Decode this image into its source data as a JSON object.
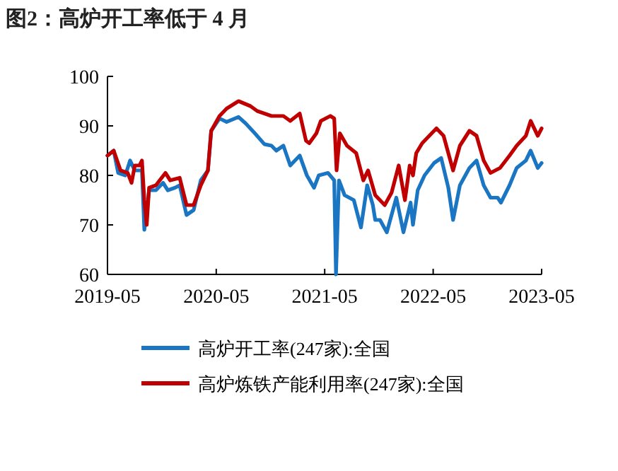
{
  "chart_data": {
    "type": "line",
    "title": "图2：高炉开工率低于 4 月",
    "xlim": [
      "2019-05",
      "2023-05"
    ],
    "xticks": [
      {
        "value": "2019-05",
        "label": "2019-05"
      },
      {
        "value": "2020-05",
        "label": "2020-05"
      },
      {
        "value": "2021-05",
        "label": "2021-05"
      },
      {
        "value": "2022-05",
        "label": "2022-05"
      },
      {
        "value": "2023-05",
        "label": "2023-05"
      }
    ],
    "ylim": [
      60,
      100
    ],
    "yticks": [
      60,
      70,
      80,
      90,
      100
    ],
    "grid": false,
    "legend": "bottom",
    "marker": "none",
    "line_style": "solid",
    "series": [
      {
        "name": "高炉开工率(247家):全国",
        "color": "#1a75c2",
        "x": [
          "2019-05-01",
          "2019-05-22",
          "2019-06-06",
          "2019-06-30",
          "2019-07-16",
          "2019-08-01",
          "2019-08-25",
          "2019-09-02",
          "2019-09-18",
          "2019-10-11",
          "2019-11-04",
          "2019-11-20",
          "2019-12-14",
          "2019-12-30",
          "2020-01-22",
          "2020-02-15",
          "2020-03-10",
          "2020-04-03",
          "2020-04-14",
          "2020-05-12",
          "2020-06-05",
          "2020-07-15",
          "2020-08-08",
          "2020-09-08",
          "2020-10-10",
          "2020-11-03",
          "2020-11-19",
          "2020-12-13",
          "2021-01-05",
          "2021-02-06",
          "2021-03-02",
          "2021-03-26",
          "2021-04-11",
          "2021-05-12",
          "2021-06-02",
          "2021-06-08",
          "2021-06-18",
          "2021-07-07",
          "2021-08-07",
          "2021-08-31",
          "2021-09-21",
          "2021-10-10",
          "2021-10-18",
          "2021-11-03",
          "2021-11-26",
          "2021-12-28",
          "2022-01-21",
          "2022-02-14",
          "2022-02-22",
          "2022-03-10",
          "2022-04-02",
          "2022-05-04",
          "2022-05-28",
          "2022-06-21",
          "2022-07-07",
          "2022-07-30",
          "2022-08-31",
          "2022-09-24",
          "2022-10-18",
          "2022-11-10",
          "2022-12-04",
          "2022-12-15",
          "2023-01-13",
          "2023-02-06",
          "2023-03-09",
          "2023-03-25",
          "2023-04-18",
          "2023-05-01"
        ],
        "values": [
          84,
          85,
          80.5,
          80,
          83,
          81,
          81,
          69,
          77,
          77,
          78.5,
          77,
          77.5,
          78,
          72,
          73,
          79,
          81,
          89,
          91.5,
          90.8,
          91.8,
          90.5,
          88.5,
          86.3,
          86,
          85,
          86,
          82,
          84,
          80,
          77.5,
          80,
          80.5,
          79,
          60,
          79,
          76,
          75,
          69.5,
          78,
          74,
          71,
          71,
          68.5,
          75.5,
          68.5,
          74.5,
          70,
          77,
          80,
          82.5,
          83.5,
          77.5,
          71,
          78,
          81.5,
          83,
          78,
          75.5,
          75.5,
          74.5,
          78,
          81.5,
          83,
          85,
          81.5,
          82.5
        ]
      },
      {
        "name": "高炉炼铁产能利用率(247家):全国",
        "color": "#c00000",
        "x": [
          "2019-05-01",
          "2019-05-22",
          "2019-06-14",
          "2019-07-08",
          "2019-07-21",
          "2019-08-01",
          "2019-08-17",
          "2019-08-25",
          "2019-09-02",
          "2019-09-10",
          "2019-09-18",
          "2019-10-11",
          "2019-11-12",
          "2019-11-28",
          "2019-12-30",
          "2020-01-22",
          "2020-02-15",
          "2020-03-10",
          "2020-04-03",
          "2020-04-14",
          "2020-05-12",
          "2020-06-05",
          "2020-07-15",
          "2020-08-24",
          "2020-09-16",
          "2020-10-10",
          "2020-11-03",
          "2020-11-27",
          "2020-12-13",
          "2021-01-05",
          "2021-02-06",
          "2021-02-27",
          "2021-03-10",
          "2021-04-03",
          "2021-04-18",
          "2021-05-20",
          "2021-06-02",
          "2021-06-10",
          "2021-06-21",
          "2021-07-15",
          "2021-08-15",
          "2021-09-08",
          "2021-09-24",
          "2021-10-18",
          "2021-11-19",
          "2021-12-12",
          "2022-01-05",
          "2022-01-26",
          "2022-02-11",
          "2022-02-22",
          "2022-03-05",
          "2022-03-25",
          "2022-04-18",
          "2022-05-12",
          "2022-06-05",
          "2022-07-07",
          "2022-07-30",
          "2022-08-31",
          "2022-09-24",
          "2022-10-18",
          "2022-11-10",
          "2022-12-12",
          "2023-01-13",
          "2023-02-06",
          "2023-03-09",
          "2023-03-25",
          "2023-04-18",
          "2023-05-01"
        ],
        "values": [
          84,
          85,
          81,
          80.5,
          78.5,
          82,
          82,
          83,
          75,
          70,
          77.5,
          78,
          80.5,
          79,
          79.5,
          74,
          74,
          78,
          81,
          89,
          92,
          93.5,
          95,
          94,
          93,
          92.5,
          92,
          92,
          92,
          91,
          92.5,
          87,
          86.5,
          88.5,
          91,
          92,
          91.5,
          81,
          88.5,
          86,
          84.5,
          79,
          81,
          76,
          74,
          76.5,
          82,
          75,
          82,
          80,
          84.5,
          86.5,
          88,
          89.5,
          88,
          81,
          86,
          89,
          88,
          83,
          80.5,
          81.5,
          84,
          86,
          88,
          91,
          88,
          89.5
        ]
      }
    ]
  }
}
